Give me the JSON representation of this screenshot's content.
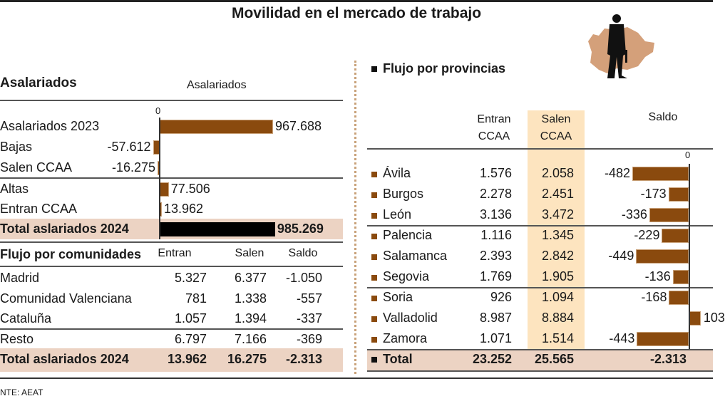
{
  "title": "Movilidad en el mercado de trabajo",
  "left": {
    "heading": "Asalariados",
    "chart_header": "Asalariados",
    "zero": "0",
    "rows": [
      {
        "label": "Asalariados 2023",
        "value": 967688,
        "text": "967.688"
      },
      {
        "label": "Bajas",
        "value": -57612,
        "text": "-57.612"
      },
      {
        "label": "Salen CCAA",
        "value": -16275,
        "text": "-16.275"
      },
      {
        "label": "Altas",
        "value": 77506,
        "text": "77.506"
      },
      {
        "label": "Entran CCAA",
        "value": 13962,
        "text": "13.962"
      }
    ],
    "total": {
      "label": "Total aslariados 2024",
      "value": 985269,
      "text": "985.269"
    }
  },
  "comunidades": {
    "heading": "Flujo por comunidades",
    "cols": [
      "Entran",
      "Salen",
      "Saldo"
    ],
    "rows": [
      {
        "name": "Madrid",
        "entran": "5.327",
        "salen": "6.377",
        "saldo": "-1.050"
      },
      {
        "name": "Comunidad Valenciana",
        "entran": "781",
        "salen": "1.338",
        "saldo": "-557"
      },
      {
        "name": "Cataluña",
        "entran": "1.057",
        "salen": "1.394",
        "saldo": "-337"
      },
      {
        "name": "Resto",
        "entran": "6.797",
        "salen": "7.166",
        "saldo": "-369"
      }
    ],
    "total": {
      "name": "Total aslariados 2024",
      "entran": "13.962",
      "salen": "16.275",
      "saldo": "-2.313"
    }
  },
  "provincias": {
    "heading": "Flujo por provincias",
    "col_entran": [
      "Entran",
      "CCAA"
    ],
    "col_salen": [
      "Salen",
      "CCAA"
    ],
    "col_saldo": "Saldo",
    "zero": "0",
    "rows": [
      {
        "name": "Ávila",
        "entran": "1.576",
        "salen": "2.058",
        "saldo": -482,
        "saldo_text": "-482"
      },
      {
        "name": "Burgos",
        "entran": "2.278",
        "salen": "2.451",
        "saldo": -173,
        "saldo_text": "-173"
      },
      {
        "name": "León",
        "entran": "3.136",
        "salen": "3.472",
        "saldo": -336,
        "saldo_text": "-336"
      },
      {
        "name": "Palencia",
        "entran": "1.116",
        "salen": "1.345",
        "saldo": -229,
        "saldo_text": "-229"
      },
      {
        "name": "Salamanca",
        "entran": "2.393",
        "salen": "2.842",
        "saldo": -449,
        "saldo_text": "-449"
      },
      {
        "name": "Segovia",
        "entran": "1.769",
        "salen": "1.905",
        "saldo": -136,
        "saldo_text": "-136"
      },
      {
        "name": "Soria",
        "entran": "926",
        "salen": "1.094",
        "saldo": -168,
        "saldo_text": "-168"
      },
      {
        "name": "Valladolid",
        "entran": "8.987",
        "salen": "8.884",
        "saldo": 103,
        "saldo_text": "103"
      },
      {
        "name": "Zamora",
        "entran": "1.071",
        "salen": "1.514",
        "saldo": -443,
        "saldo_text": "-443"
      }
    ],
    "total": {
      "name": "Total",
      "entran": "23.252",
      "salen": "25.565",
      "saldo": "-2.313"
    }
  },
  "source": "NTE: AEAT",
  "colors": {
    "bar": "#8a4a0e",
    "total_bar": "#000000",
    "band": "#ecd3c3",
    "highlight": "#fde4bf"
  },
  "chart_data": [
    {
      "type": "bar",
      "title": "Asalariados",
      "categories": [
        "Asalariados 2023",
        "Bajas",
        "Salen CCAA",
        "Altas",
        "Entran CCAA",
        "Total aslariados 2024"
      ],
      "values": [
        967688,
        -57612,
        -16275,
        77506,
        13962,
        985269
      ]
    },
    {
      "type": "bar",
      "title": "Saldo",
      "categories": [
        "Ávila",
        "Burgos",
        "León",
        "Palencia",
        "Salamanca",
        "Segovia",
        "Soria",
        "Valladolid",
        "Zamora"
      ],
      "values": [
        -482,
        -173,
        -336,
        -229,
        -449,
        -136,
        -168,
        103,
        -443
      ]
    }
  ]
}
